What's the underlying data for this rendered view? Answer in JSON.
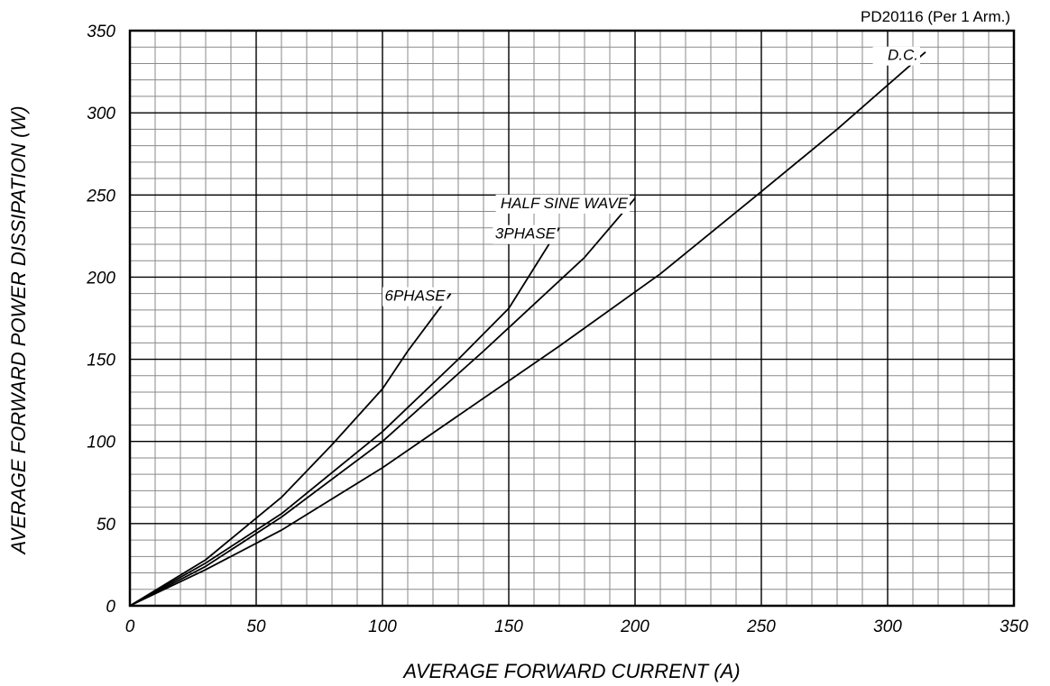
{
  "chart_data": {
    "type": "line",
    "title": "PD20116 (Per 1 Arm.)",
    "xlabel": "AVERAGE FORWARD CURRENT (A)",
    "ylabel": "AVERAGE FORWARD POWER DISSIPATION (W)",
    "xlim": [
      0,
      350
    ],
    "ylim": [
      0,
      350
    ],
    "x_ticks": [
      0,
      50,
      100,
      150,
      200,
      250,
      300,
      350
    ],
    "y_ticks": [
      0,
      50,
      100,
      150,
      200,
      250,
      300,
      350
    ],
    "grid": true,
    "legend": "inline labels at line ends",
    "series": [
      {
        "name": "6PHASE",
        "x": [
          0,
          30,
          60,
          80,
          100,
          110,
          127
        ],
        "y": [
          0,
          28,
          66,
          98,
          132,
          155,
          190
        ]
      },
      {
        "name": "3PHASE",
        "x": [
          0,
          30,
          60,
          100,
          130,
          150,
          170
        ],
        "y": [
          0,
          26,
          56,
          106,
          150,
          181,
          230
        ]
      },
      {
        "name": "HALF SINE WAVE",
        "x": [
          0,
          30,
          60,
          100,
          140,
          180,
          200
        ],
        "y": [
          0,
          24,
          54,
          100,
          155,
          212,
          248
        ]
      },
      {
        "name": "D.C.",
        "x": [
          0,
          30,
          60,
          100,
          170,
          210,
          250,
          280,
          315
        ],
        "y": [
          0,
          22,
          46,
          84,
          158,
          202,
          252,
          290,
          337
        ]
      }
    ]
  }
}
